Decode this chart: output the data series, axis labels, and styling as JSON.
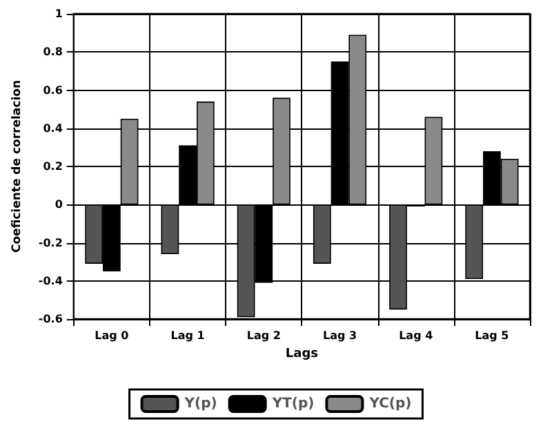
{
  "chart_data": {
    "type": "bar",
    "xlabel": "Lags",
    "ylabel": "Coeficiente de correlacion",
    "categories": [
      "Lag 0",
      "Lag 1",
      "Lag 2",
      "Lag 3",
      "Lag 4",
      "Lag 5"
    ],
    "series": [
      {
        "name": "Y(p)",
        "color": "#555555",
        "values": [
          -0.31,
          -0.26,
          -0.59,
          -0.31,
          -0.55,
          -0.39
        ]
      },
      {
        "name": "YT(p)",
        "color": "#000000",
        "values": [
          -0.35,
          0.31,
          -0.41,
          0.75,
          -0.01,
          0.28
        ]
      },
      {
        "name": "YC(p)",
        "color": "#8a8a8a",
        "values": [
          0.45,
          0.54,
          0.56,
          0.89,
          0.46,
          0.24
        ]
      }
    ],
    "ylim": [
      -0.6,
      1
    ],
    "yticks": [
      -0.6,
      -0.4,
      -0.2,
      0,
      0.2,
      0.4,
      0.6,
      0.8,
      1
    ],
    "grid": true,
    "legend": "bottom"
  }
}
